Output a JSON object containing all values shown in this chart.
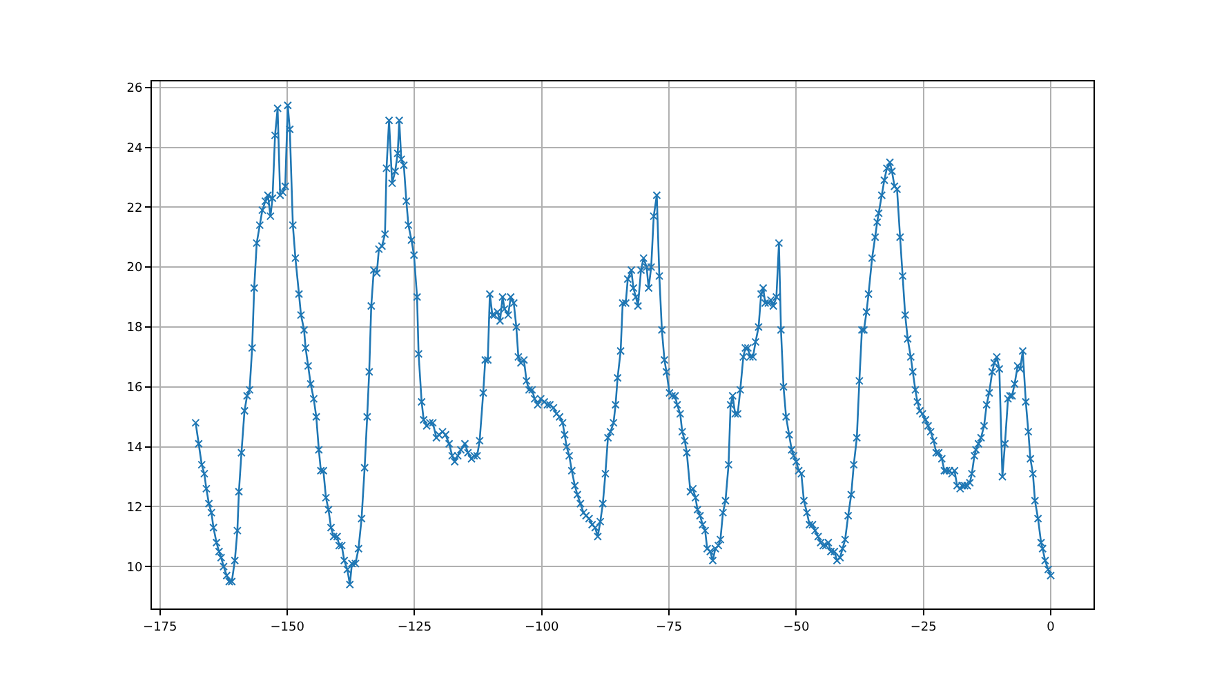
{
  "chart_data": {
    "type": "line",
    "x": [
      -168.0,
      -167.4,
      -166.8,
      -166.3,
      -165.9,
      -165.4,
      -164.9,
      -164.5,
      -163.9,
      -163.4,
      -163.0,
      -162.5,
      -161.9,
      -161.4,
      -160.9,
      -160.3,
      -159.8,
      -159.5,
      -159.0,
      -158.4,
      -157.9,
      -157.4,
      -156.9,
      -156.5,
      -156.0,
      -155.4,
      -154.9,
      -154.3,
      -153.8,
      -153.3,
      -152.9,
      -152.4,
      -151.9,
      -151.4,
      -150.9,
      -150.4,
      -149.9,
      -149.5,
      -148.9,
      -148.4,
      -147.7,
      -147.3,
      -146.7,
      -146.4,
      -145.9,
      -145.4,
      -144.8,
      -144.3,
      -143.8,
      -143.4,
      -142.9,
      -142.4,
      -141.9,
      -141.4,
      -140.9,
      -140.2,
      -139.8,
      -139.3,
      -138.8,
      -138.2,
      -137.7,
      -137.3,
      -136.6,
      -136.0,
      -135.4,
      -134.8,
      -134.3,
      -133.9,
      -133.5,
      -133.0,
      -132.4,
      -132.0,
      -131.4,
      -130.8,
      -130.5,
      -130.0,
      -129.4,
      -128.8,
      -128.3,
      -128.0,
      -127.6,
      -127.1,
      -126.6,
      -126.2,
      -125.6,
      -125.1,
      -124.5,
      -124.2,
      -123.6,
      -123.2,
      -122.6,
      -122.0,
      -121.4,
      -120.7,
      -120.2,
      -119.5,
      -118.9,
      -118.2,
      -117.6,
      -117.1,
      -116.5,
      -115.9,
      -115.1,
      -114.5,
      -113.8,
      -113.3,
      -112.7,
      -112.2,
      -111.5,
      -111.1,
      -110.6,
      -110.2,
      -109.7,
      -109.3,
      -108.7,
      -108.2,
      -107.7,
      -107.3,
      -106.6,
      -106.1,
      -105.5,
      -105.0,
      -104.6,
      -104.1,
      -103.5,
      -103.0,
      -102.5,
      -101.9,
      -101.4,
      -100.8,
      -100.2,
      -99.5,
      -98.9,
      -98.4,
      -97.7,
      -97.1,
      -96.5,
      -95.9,
      -95.5,
      -95.1,
      -94.6,
      -94.1,
      -93.5,
      -93.0,
      -92.4,
      -91.8,
      -91.3,
      -90.7,
      -90.1,
      -89.5,
      -89.0,
      -88.5,
      -88.0,
      -87.5,
      -87.0,
      -86.5,
      -85.9,
      -85.5,
      -85.1,
      -84.5,
      -84.1,
      -83.5,
      -83.1,
      -82.4,
      -82.0,
      -81.5,
      -81.1,
      -80.5,
      -80.0,
      -79.4,
      -79.0,
      -78.5,
      -78.0,
      -77.4,
      -76.9,
      -76.4,
      -75.9,
      -75.5,
      -74.9,
      -74.4,
      -73.8,
      -73.4,
      -72.8,
      -72.4,
      -71.9,
      -71.5,
      -70.8,
      -70.3,
      -69.8,
      -69.4,
      -68.9,
      -68.4,
      -67.9,
      -67.5,
      -66.9,
      -66.4,
      -65.9,
      -65.3,
      -64.9,
      -64.4,
      -63.9,
      -63.3,
      -62.9,
      -62.5,
      -62.0,
      -61.5,
      -61.0,
      -60.4,
      -60.0,
      -59.5,
      -59.1,
      -58.5,
      -58.0,
      -57.4,
      -56.9,
      -56.5,
      -56.1,
      -55.5,
      -55.0,
      -54.5,
      -53.9,
      -53.4,
      -53.0,
      -52.5,
      -52.0,
      -51.4,
      -50.9,
      -50.5,
      -50.0,
      -49.5,
      -49.0,
      -48.5,
      -47.9,
      -47.4,
      -46.8,
      -46.3,
      -45.7,
      -45.2,
      -44.7,
      -44.2,
      -43.7,
      -43.2,
      -42.5,
      -42.0,
      -41.4,
      -40.9,
      -40.4,
      -39.8,
      -39.2,
      -38.7,
      -38.1,
      -37.6,
      -37.1,
      -36.7,
      -36.2,
      -35.8,
      -35.1,
      -34.5,
      -34.1,
      -33.8,
      -33.2,
      -32.7,
      -32.2,
      -31.6,
      -31.2,
      -30.7,
      -30.2,
      -29.6,
      -29.1,
      -28.6,
      -28.1,
      -27.5,
      -27.1,
      -26.6,
      -26.2,
      -25.7,
      -25.2,
      -24.6,
      -24.1,
      -23.6,
      -23.0,
      -22.5,
      -22.0,
      -21.4,
      -20.9,
      -20.5,
      -19.9,
      -19.4,
      -18.9,
      -18.4,
      -17.8,
      -17.4,
      -16.9,
      -16.4,
      -15.9,
      -15.5,
      -15.0,
      -14.7,
      -14.2,
      -13.7,
      -13.1,
      -12.6,
      -12.1,
      -11.5,
      -11.1,
      -10.6,
      -10.1,
      -9.5,
      -9.0,
      -8.4,
      -8.0,
      -7.6,
      -7.1,
      -6.5,
      -6.0,
      -5.5,
      -4.9,
      -4.4,
      -4.0,
      -3.5,
      -3.1,
      -2.5,
      -1.9,
      -1.6,
      -1.1,
      -0.5,
      0.0
    ],
    "series": [
      {
        "color": "#1f77b4",
        "values": [
          14.8,
          14.1,
          13.4,
          13.1,
          12.6,
          12.1,
          11.8,
          11.3,
          10.8,
          10.5,
          10.3,
          10.0,
          9.7,
          9.5,
          9.5,
          10.2,
          11.2,
          12.5,
          13.8,
          15.2,
          15.7,
          15.9,
          17.3,
          19.3,
          20.8,
          21.4,
          21.9,
          22.2,
          22.4,
          21.7,
          22.3,
          24.4,
          25.3,
          22.4,
          22.5,
          22.7,
          25.4,
          24.6,
          21.4,
          20.3,
          19.1,
          18.4,
          17.9,
          17.3,
          16.7,
          16.1,
          15.6,
          15.0,
          13.9,
          13.2,
          13.2,
          12.3,
          11.9,
          11.3,
          11.0,
          11.0,
          10.7,
          10.7,
          10.2,
          9.9,
          9.4,
          10.1,
          10.1,
          10.6,
          11.6,
          13.3,
          15.0,
          16.5,
          18.7,
          19.9,
          19.8,
          20.6,
          20.7,
          21.1,
          23.3,
          24.9,
          22.8,
          23.2,
          23.8,
          24.9,
          23.6,
          23.4,
          22.2,
          21.4,
          20.9,
          20.4,
          19.0,
          17.1,
          15.5,
          14.9,
          14.7,
          14.8,
          14.8,
          14.3,
          14.4,
          14.5,
          14.4,
          14.1,
          13.7,
          13.5,
          13.7,
          13.9,
          14.1,
          13.8,
          13.6,
          13.7,
          13.7,
          14.2,
          15.8,
          16.9,
          16.9,
          19.1,
          18.4,
          18.4,
          18.5,
          18.2,
          19.0,
          18.6,
          18.4,
          19.0,
          18.8,
          18.0,
          17.0,
          16.8,
          16.9,
          16.2,
          15.9,
          15.9,
          15.6,
          15.4,
          15.6,
          15.5,
          15.4,
          15.4,
          15.3,
          15.1,
          15.0,
          14.8,
          14.4,
          14.0,
          13.7,
          13.2,
          12.7,
          12.4,
          12.1,
          11.8,
          11.7,
          11.6,
          11.4,
          11.3,
          11.0,
          11.5,
          12.1,
          13.1,
          14.3,
          14.5,
          14.8,
          15.4,
          16.3,
          17.2,
          18.8,
          18.8,
          19.6,
          19.9,
          19.3,
          19.0,
          18.7,
          19.9,
          20.3,
          20.0,
          19.3,
          20.0,
          21.7,
          22.4,
          19.7,
          17.9,
          16.9,
          16.5,
          15.8,
          15.7,
          15.7,
          15.4,
          15.1,
          14.5,
          14.2,
          13.8,
          12.5,
          12.6,
          12.3,
          11.9,
          11.7,
          11.4,
          11.2,
          10.6,
          10.5,
          10.2,
          10.6,
          10.7,
          10.9,
          11.8,
          12.2,
          13.4,
          15.4,
          15.7,
          15.1,
          15.1,
          15.9,
          17.0,
          17.3,
          17.3,
          17.0,
          17.0,
          17.5,
          18.0,
          19.1,
          19.3,
          18.8,
          18.8,
          18.9,
          18.7,
          19.0,
          20.8,
          17.9,
          16.0,
          15.0,
          14.4,
          13.9,
          13.7,
          13.5,
          13.2,
          13.1,
          12.2,
          11.8,
          11.4,
          11.4,
          11.2,
          11.0,
          10.8,
          10.7,
          10.7,
          10.8,
          10.5,
          10.5,
          10.2,
          10.3,
          10.6,
          10.9,
          11.7,
          12.4,
          13.4,
          14.3,
          16.2,
          17.9,
          17.9,
          18.5,
          19.1,
          20.3,
          21.0,
          21.5,
          21.8,
          22.4,
          22.9,
          23.3,
          23.5,
          23.2,
          22.7,
          22.6,
          21.0,
          19.7,
          18.4,
          17.6,
          17.0,
          16.5,
          15.9,
          15.5,
          15.2,
          15.1,
          14.9,
          14.7,
          14.5,
          14.2,
          13.8,
          13.8,
          13.6,
          13.2,
          13.2,
          13.2,
          13.1,
          13.2,
          12.7,
          12.6,
          12.7,
          12.7,
          12.7,
          12.8,
          13.1,
          13.7,
          13.9,
          14.1,
          14.3,
          14.7,
          15.4,
          15.8,
          16.5,
          16.8,
          17.0,
          16.6,
          13.0,
          14.1,
          15.6,
          15.7,
          15.7,
          16.1,
          16.7,
          16.6,
          17.2,
          15.5,
          14.5,
          13.6,
          13.1,
          12.2,
          11.6,
          10.8,
          10.6,
          10.2,
          9.9,
          9.7
        ]
      }
    ],
    "xlim": [
      -176.6,
      8.4
    ],
    "ylim": [
      8.6,
      26.2
    ],
    "xticks": [
      -175,
      -150,
      -125,
      -100,
      -75,
      -50,
      -25,
      0
    ],
    "yticks": [
      10,
      12,
      14,
      16,
      18,
      20,
      22,
      24,
      26
    ],
    "grid": true,
    "marker": "cross",
    "line_style": "solid"
  }
}
